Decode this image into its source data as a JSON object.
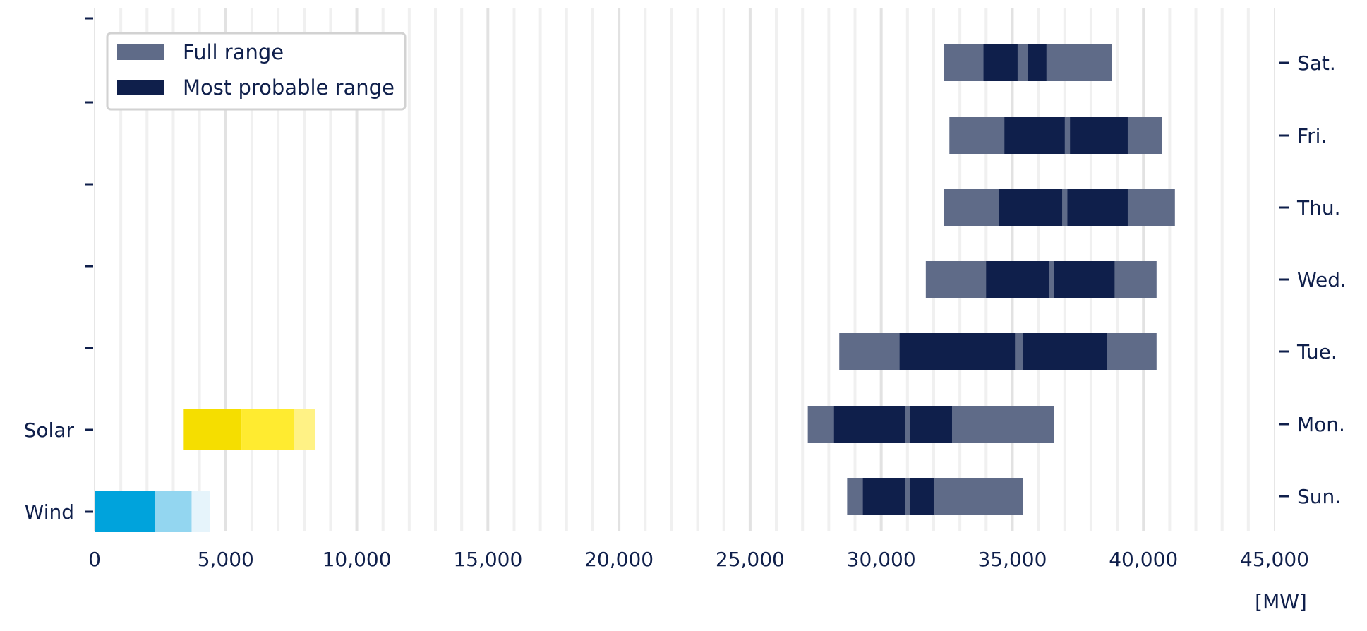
{
  "chart_data": {
    "type": "bar",
    "orientation": "horizontal",
    "unit_label": "[MW]",
    "xlim": [
      0,
      45000
    ],
    "x_ticks": [
      0,
      5000,
      10000,
      15000,
      20000,
      25000,
      30000,
      35000,
      40000,
      45000
    ],
    "x_tick_labels": [
      "0",
      "5,000",
      "10,000",
      "15,000",
      "20,000",
      "25,000",
      "30,000",
      "35,000",
      "40,000",
      "45,000"
    ],
    "grid": "vertical",
    "legend": {
      "position": "top-left",
      "entries": [
        {
          "label": "Full range",
          "color": "#5f6b88"
        },
        {
          "label": "Most probable range",
          "color": "#0f1f4b"
        }
      ]
    },
    "renewables": [
      {
        "name": "Solar",
        "segments": [
          {
            "start": 3400,
            "end": 5600,
            "color": "#f5de00"
          },
          {
            "start": 5600,
            "end": 7600,
            "color": "#ffeb30"
          },
          {
            "start": 7600,
            "end": 8400,
            "color": "#fff285"
          }
        ]
      },
      {
        "name": "Wind",
        "segments": [
          {
            "start": 0,
            "end": 2300,
            "color": "#00a3dc"
          },
          {
            "start": 2300,
            "end": 3700,
            "color": "#93d6f0"
          },
          {
            "start": 3700,
            "end": 4400,
            "color": "#e6f4fb"
          }
        ]
      }
    ],
    "days": [
      {
        "label": "Sat.",
        "full": [
          32400,
          38800
        ],
        "probable": [
          [
            33900,
            35200
          ],
          [
            35600,
            36300
          ]
        ]
      },
      {
        "label": "Fri.",
        "full": [
          32600,
          40700
        ],
        "probable": [
          [
            34700,
            37000
          ],
          [
            37200,
            39400
          ]
        ]
      },
      {
        "label": "Thu.",
        "full": [
          32400,
          41200
        ],
        "probable": [
          [
            34500,
            36900
          ],
          [
            37100,
            39400
          ]
        ]
      },
      {
        "label": "Wed.",
        "full": [
          31700,
          40500
        ],
        "probable": [
          [
            34000,
            36400
          ],
          [
            36600,
            38900
          ]
        ]
      },
      {
        "label": "Tue.",
        "full": [
          28400,
          40500
        ],
        "probable": [
          [
            30700,
            35100
          ],
          [
            35400,
            38600
          ]
        ]
      },
      {
        "label": "Mon.",
        "full": [
          27200,
          36600
        ],
        "probable": [
          [
            28200,
            30900
          ],
          [
            31100,
            32700
          ]
        ]
      },
      {
        "label": "Sun.",
        "full": [
          28700,
          35400
        ],
        "probable": [
          [
            29300,
            30900
          ],
          [
            31100,
            32000
          ]
        ]
      }
    ],
    "colors": {
      "full": "#5f6b88",
      "probable": "#0f1f4b",
      "text": "#0f1f4b",
      "grid_minor": "#f0f0f0",
      "grid_major": "#e2e2e2"
    }
  }
}
